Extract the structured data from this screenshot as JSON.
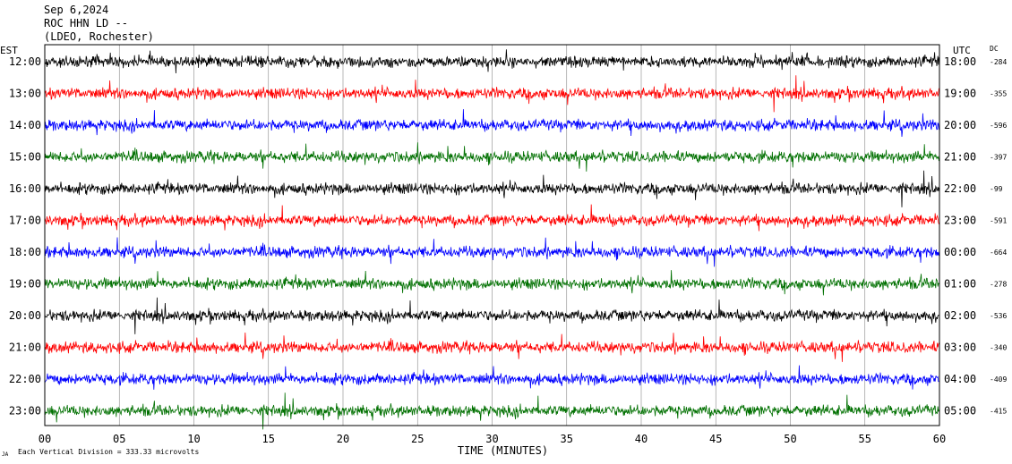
{
  "header": {
    "date": "Sep 6,2024",
    "station": "ROC HHN LD --",
    "location": "(LDEO, Rochester)"
  },
  "chart_data": {
    "type": "line",
    "title": "",
    "left_axis_label": "EST",
    "right_axis_label": "UTC",
    "dc_label": "DC",
    "xlabel": "TIME (MINUTES)",
    "xlim": [
      0,
      60
    ],
    "x_ticks": [
      "00",
      "05",
      "10",
      "15",
      "20",
      "25",
      "30",
      "35",
      "40",
      "45",
      "50",
      "55",
      "60"
    ],
    "scale_note": "Each Vertical Division = 333.33 microvolts",
    "scale_mark": "JA",
    "trace_colors": [
      "#000000",
      "#ff0000",
      "#0000ff",
      "#007000"
    ],
    "rows": [
      {
        "est": "12:00",
        "utc": "18:00",
        "dc": "-284",
        "color": "#000000"
      },
      {
        "est": "13:00",
        "utc": "19:00",
        "dc": "-355",
        "color": "#ff0000"
      },
      {
        "est": "14:00",
        "utc": "20:00",
        "dc": "-596",
        "color": "#0000ff"
      },
      {
        "est": "15:00",
        "utc": "21:00",
        "dc": "-397",
        "color": "#007000"
      },
      {
        "est": "16:00",
        "utc": "22:00",
        "dc": "-99",
        "color": "#000000"
      },
      {
        "est": "17:00",
        "utc": "23:00",
        "dc": "-591",
        "color": "#ff0000"
      },
      {
        "est": "18:00",
        "utc": "00:00",
        "dc": "-664",
        "color": "#0000ff"
      },
      {
        "est": "19:00",
        "utc": "01:00",
        "dc": "-278",
        "color": "#007000"
      },
      {
        "est": "20:00",
        "utc": "02:00",
        "dc": "-536",
        "color": "#000000"
      },
      {
        "est": "21:00",
        "utc": "03:00",
        "dc": "-340",
        "color": "#ff0000"
      },
      {
        "est": "22:00",
        "utc": "04:00",
        "dc": "-409",
        "color": "#0000ff"
      },
      {
        "est": "23:00",
        "utc": "05:00",
        "dc": "-415",
        "color": "#007000"
      }
    ]
  }
}
